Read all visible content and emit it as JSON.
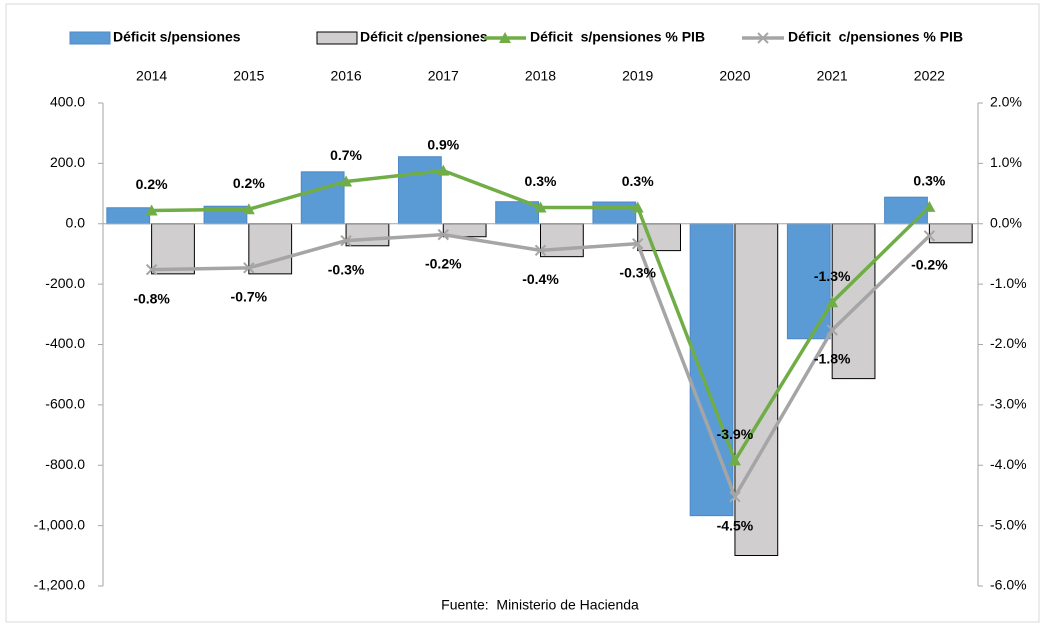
{
  "chart_data": {
    "type": "bar",
    "categories": [
      "2014",
      "2015",
      "2016",
      "2017",
      "2018",
      "2019",
      "2020",
      "2021",
      "2022"
    ],
    "series": [
      {
        "name": "Déficit s/pensiones",
        "type": "bar",
        "color": "#5b9bd5",
        "values": [
          53,
          58,
          172,
          222,
          73,
          72,
          -967,
          -381,
          88
        ]
      },
      {
        "name": "Déficit c/pensiones",
        "type": "bar",
        "color": "#d0cece",
        "values": [
          -166,
          -166,
          -73,
          -43,
          -109,
          -89,
          -1099,
          -513,
          -63
        ]
      },
      {
        "name": "Déficit  s/pensiones % PIB",
        "type": "line",
        "axis": "y2",
        "marker": "triangle",
        "color": "#70ad47",
        "values": [
          0.22,
          0.24,
          0.7,
          0.88,
          0.27,
          0.27,
          -3.92,
          -1.3,
          0.28
        ],
        "value_labels": [
          "0.2%",
          "0.2%",
          "0.7%",
          "0.9%",
          "0.3%",
          "0.3%",
          "-3.9%",
          "-1.3%",
          "0.3%"
        ]
      },
      {
        "name": "Déficit  c/pensiones % PIB",
        "type": "line",
        "axis": "y2",
        "marker": "x",
        "color": "#a5a5a5",
        "values": [
          -0.76,
          -0.73,
          -0.28,
          -0.18,
          -0.44,
          -0.33,
          -4.52,
          -1.76,
          -0.2
        ],
        "value_labels": [
          "-0.8%",
          "-0.7%",
          "-0.3%",
          "-0.2%",
          "-0.4%",
          "-0.3%",
          "-4.5%",
          "-1.8%",
          "-0.2%"
        ]
      }
    ],
    "ylim": [
      -1200,
      400
    ],
    "yticks": [
      {
        "value": 400,
        "label": "400.0"
      },
      {
        "value": 200,
        "label": "200.0"
      },
      {
        "value": 0,
        "label": "0.0"
      },
      {
        "value": -200,
        "label": "-200.0"
      },
      {
        "value": -400,
        "label": "-400.0"
      },
      {
        "value": -600,
        "label": "-600.0"
      },
      {
        "value": -800,
        "label": "-800.0"
      },
      {
        "value": -1000,
        "label": "-1,000.0"
      },
      {
        "value": -1200,
        "label": "-1,200.0"
      }
    ],
    "y2lim": [
      -6,
      2
    ],
    "y2ticks": [
      {
        "value": 2,
        "label": "2.0%"
      },
      {
        "value": 1,
        "label": "1.0%"
      },
      {
        "value": 0,
        "label": "0.0%"
      },
      {
        "value": -1,
        "label": "-1.0%"
      },
      {
        "value": -2,
        "label": "-2.0%"
      },
      {
        "value": -3,
        "label": "-3.0%"
      },
      {
        "value": -4,
        "label": "-4.0%"
      },
      {
        "value": -5,
        "label": "-5.0%"
      },
      {
        "value": -6,
        "label": "-6.0%"
      }
    ],
    "grid": false,
    "legend": "top",
    "source": "Fuente:  Ministerio de Hacienda"
  }
}
